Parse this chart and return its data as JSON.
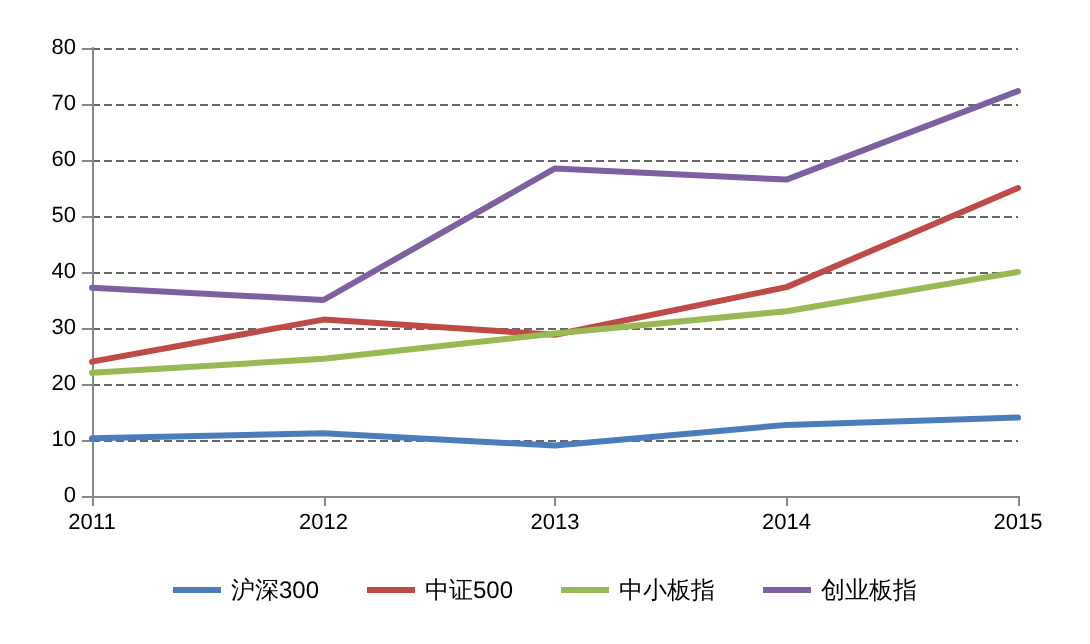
{
  "chart_data": {
    "type": "line",
    "x": [
      2011,
      2012,
      2013,
      2014,
      2015
    ],
    "series": [
      {
        "name": "沪深300",
        "color": "#4a7ebb",
        "values": [
          10.3,
          11.2,
          9,
          12.7,
          14
        ]
      },
      {
        "name": "中证500",
        "color": "#be4b48",
        "values": [
          24,
          31.5,
          28.8,
          37.3,
          55
        ]
      },
      {
        "name": "中小板指",
        "color": "#98b954",
        "values": [
          22,
          24.5,
          29,
          33,
          40
        ]
      },
      {
        "name": "创业板指",
        "color": "#7d60a0",
        "values": [
          37.2,
          35,
          58.5,
          56.5,
          72.3
        ]
      }
    ],
    "xlim": [
      2011,
      2015
    ],
    "xticks": [
      2011,
      2012,
      2013,
      2014,
      2015
    ],
    "ylim": [
      0,
      80
    ],
    "yticks": [
      0,
      10,
      20,
      30,
      40,
      50,
      60,
      70,
      80
    ],
    "grid": "y",
    "legend": "bottom",
    "marker": "none",
    "line_style": "solid"
  }
}
